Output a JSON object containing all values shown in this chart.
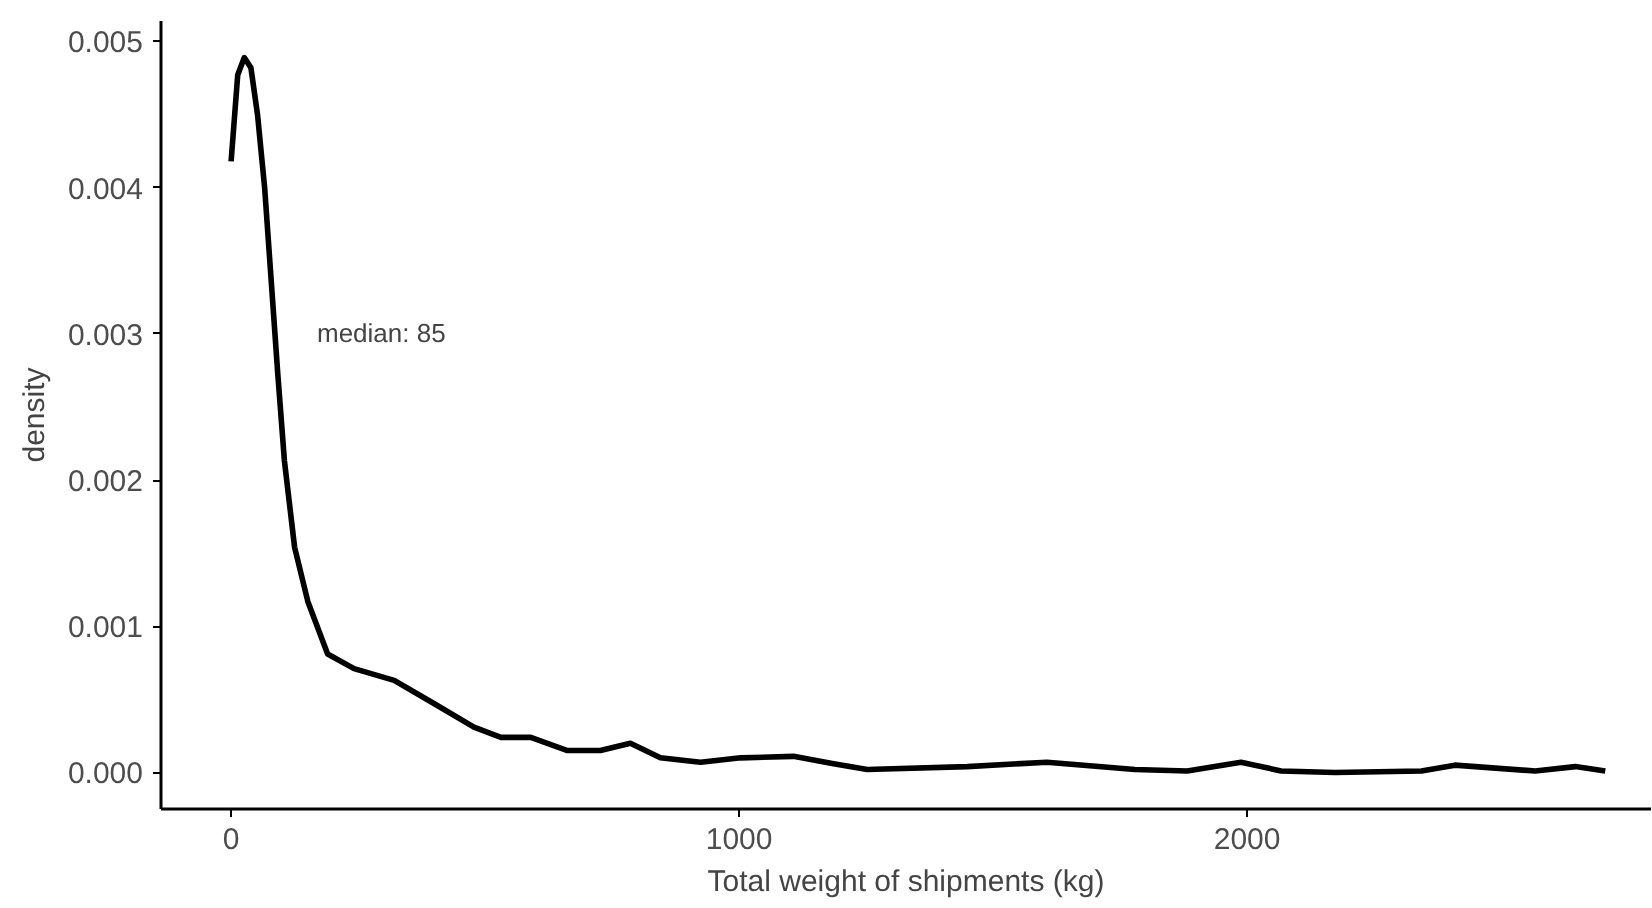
{
  "chart_data": {
    "type": "line",
    "xlabel": "Total weight of shipments (kg)",
    "ylabel": "density",
    "annotations": [
      "median: 85"
    ],
    "xlim": [
      -138,
      2795
    ],
    "ylim": [
      -0.00025,
      0.00514
    ],
    "xticks": [
      0,
      1000,
      2000
    ],
    "yticks": [
      {
        "value": 0,
        "label": "0.000"
      },
      {
        "value": 0.001,
        "label": "0.001"
      },
      {
        "value": 0.002,
        "label": "0.002"
      },
      {
        "value": 0.003,
        "label": "0.003"
      },
      {
        "value": 0.004,
        "label": "0.004"
      },
      {
        "value": 0.005,
        "label": "0.005"
      }
    ],
    "grid": false,
    "line_style": "solid",
    "marker": "none",
    "x": [
      0,
      13,
      26,
      39,
      52,
      66,
      79,
      92,
      105,
      125,
      151,
      190,
      242,
      321,
      400,
      478,
      531,
      590,
      662,
      727,
      786,
      845,
      924,
      1003,
      1107,
      1186,
      1252,
      1449,
      1606,
      1779,
      1882,
      1988,
      2067,
      2173,
      2343,
      2409,
      2567,
      2646,
      2705
    ],
    "series": [
      {
        "color": "#000000",
        "values": [
          0.00418,
          0.00477,
          0.00489,
          0.00482,
          0.0045,
          0.004,
          0.00336,
          0.00272,
          0.00213,
          0.00154,
          0.00117,
          0.00081,
          0.00071,
          0.00063,
          0.00047,
          0.00031,
          0.00024,
          0.00024,
          0.00015,
          0.00015,
          0.0002,
          0.0001,
          7e-05,
          0.0001,
          0.00011,
          6e-05,
          2e-05,
          4e-05,
          7e-05,
          2e-05,
          1e-05,
          7e-05,
          1e-05,
          0.0,
          1e-05,
          5e-05,
          1e-05,
          4e-05,
          1e-05
        ]
      }
    ]
  }
}
